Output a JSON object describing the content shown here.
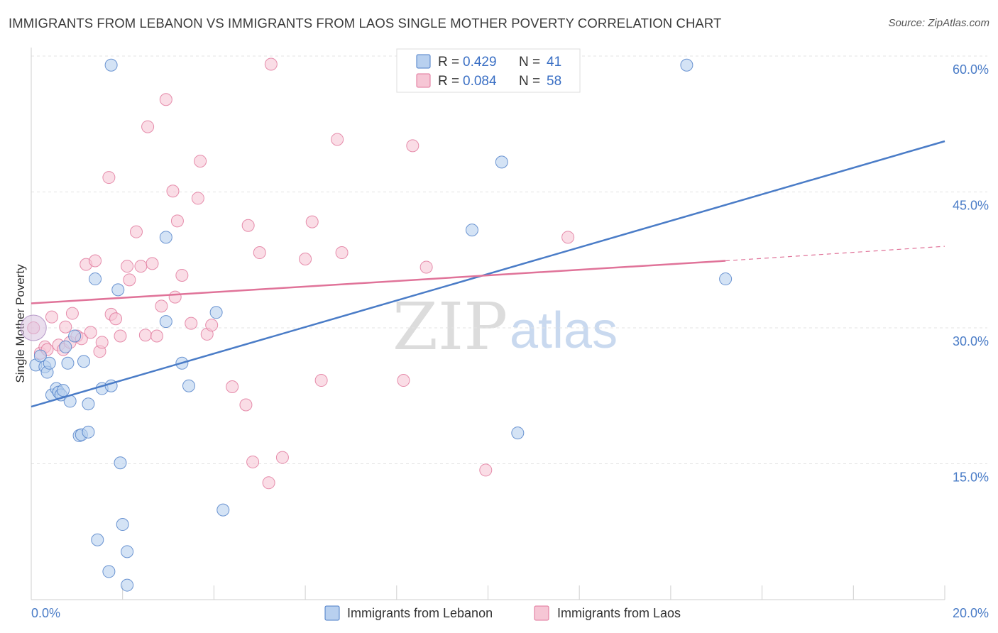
{
  "title": "IMMIGRANTS FROM LEBANON VS IMMIGRANTS FROM LAOS SINGLE MOTHER POVERTY CORRELATION CHART",
  "source": "Source: ZipAtlas.com",
  "watermark": {
    "part1": "ZIP",
    "part2": "atlas"
  },
  "colors": {
    "lebanon": "#4a7cc7",
    "laos": "#e07399",
    "lebanon_fill": "#b8d0ef",
    "laos_fill": "#f6c6d5"
  },
  "chart_data": {
    "type": "scatter",
    "title": "IMMIGRANTS FROM LEBANON VS IMMIGRANTS FROM LAOS SINGLE MOTHER POVERTY CORRELATION CHART",
    "xlabel": "",
    "ylabel": "Single Mother Poverty",
    "xlim": [
      0,
      20
    ],
    "ylim": [
      0,
      60
    ],
    "x_tick_labels": [
      "0.0%",
      "20.0%"
    ],
    "y_ticks": [
      15,
      30,
      45,
      60
    ],
    "y_tick_labels": [
      "15.0%",
      "30.0%",
      "45.0%",
      "60.0%"
    ],
    "grid": true,
    "legend_position": "top-center",
    "stats": [
      {
        "r_label": "R =",
        "r": "0.429",
        "n_label": "N =",
        "n": "41"
      },
      {
        "r_label": "R =",
        "r": "0.084",
        "n_label": "N =",
        "n": "58"
      }
    ],
    "series": [
      {
        "name": "Immigrants from Lebanon",
        "color": "#4a7cc7",
        "trend": {
          "x0": 0,
          "y0": 21.3,
          "x1": 20,
          "y1": 50.6
        },
        "points": [
          [
            0.1,
            25.9
          ],
          [
            0.2,
            26.9
          ],
          [
            0.3,
            25.7
          ],
          [
            0.35,
            25.1
          ],
          [
            0.4,
            26.1
          ],
          [
            0.45,
            22.6
          ],
          [
            0.55,
            23.3
          ],
          [
            0.6,
            22.9
          ],
          [
            0.65,
            22.6
          ],
          [
            0.7,
            23.1
          ],
          [
            0.75,
            27.9
          ],
          [
            0.8,
            26.1
          ],
          [
            0.85,
            21.9
          ],
          [
            0.95,
            29.1
          ],
          [
            1.05,
            18.1
          ],
          [
            1.1,
            18.2
          ],
          [
            1.15,
            26.3
          ],
          [
            1.25,
            21.6
          ],
          [
            1.25,
            18.5
          ],
          [
            1.4,
            35.4
          ],
          [
            1.45,
            6.6
          ],
          [
            1.55,
            23.3
          ],
          [
            1.7,
            3.1
          ],
          [
            1.75,
            23.6
          ],
          [
            1.75,
            59.0
          ],
          [
            1.9,
            34.2
          ],
          [
            1.95,
            15.1
          ],
          [
            2.0,
            8.3
          ],
          [
            2.1,
            5.3
          ],
          [
            2.1,
            1.6
          ],
          [
            2.95,
            40.0
          ],
          [
            2.95,
            30.7
          ],
          [
            3.3,
            26.1
          ],
          [
            3.45,
            23.6
          ],
          [
            4.05,
            31.7
          ],
          [
            4.2,
            9.9
          ],
          [
            9.65,
            40.8
          ],
          [
            10.3,
            48.3
          ],
          [
            10.65,
            18.4
          ],
          [
            14.35,
            59.0
          ],
          [
            15.2,
            35.4
          ]
        ]
      },
      {
        "name": "Immigrants from Laos",
        "color": "#e07399",
        "trend": {
          "x0": 0,
          "y0": 32.7,
          "x1": 15.2,
          "y1": 37.4
        },
        "trend_ext": {
          "x0": 15.2,
          "y0": 37.4,
          "x1": 20,
          "y1": 39.0
        },
        "points": [
          [
            0.05,
            30.0
          ],
          [
            0.2,
            27.2
          ],
          [
            0.3,
            27.9
          ],
          [
            0.35,
            27.6
          ],
          [
            0.45,
            31.2
          ],
          [
            0.6,
            28.1
          ],
          [
            0.7,
            27.6
          ],
          [
            0.75,
            30.1
          ],
          [
            0.85,
            28.4
          ],
          [
            0.9,
            31.6
          ],
          [
            1.0,
            29.1
          ],
          [
            1.1,
            28.8
          ],
          [
            1.2,
            37.0
          ],
          [
            1.3,
            29.5
          ],
          [
            1.4,
            37.4
          ],
          [
            1.5,
            27.4
          ],
          [
            1.55,
            28.4
          ],
          [
            1.7,
            46.6
          ],
          [
            1.75,
            31.5
          ],
          [
            1.85,
            31.0
          ],
          [
            1.95,
            29.1
          ],
          [
            2.1,
            36.8
          ],
          [
            2.15,
            35.3
          ],
          [
            2.3,
            40.6
          ],
          [
            2.4,
            36.8
          ],
          [
            2.5,
            29.2
          ],
          [
            2.55,
            52.2
          ],
          [
            2.65,
            37.1
          ],
          [
            2.75,
            29.1
          ],
          [
            2.85,
            32.4
          ],
          [
            2.95,
            55.2
          ],
          [
            3.1,
            45.1
          ],
          [
            3.15,
            33.4
          ],
          [
            3.2,
            41.8
          ],
          [
            3.3,
            35.8
          ],
          [
            3.5,
            30.5
          ],
          [
            3.65,
            44.3
          ],
          [
            3.7,
            48.4
          ],
          [
            3.85,
            29.3
          ],
          [
            3.95,
            30.3
          ],
          [
            4.4,
            23.5
          ],
          [
            4.7,
            21.5
          ],
          [
            4.75,
            41.3
          ],
          [
            4.85,
            15.2
          ],
          [
            5.0,
            38.3
          ],
          [
            5.2,
            12.9
          ],
          [
            5.25,
            59.1
          ],
          [
            5.5,
            15.7
          ],
          [
            6.0,
            37.6
          ],
          [
            6.15,
            41.7
          ],
          [
            6.35,
            24.2
          ],
          [
            6.7,
            50.8
          ],
          [
            6.8,
            38.3
          ],
          [
            8.15,
            24.2
          ],
          [
            8.35,
            50.1
          ],
          [
            8.65,
            36.7
          ],
          [
            9.95,
            14.3
          ],
          [
            11.75,
            40.0
          ]
        ]
      }
    ]
  }
}
